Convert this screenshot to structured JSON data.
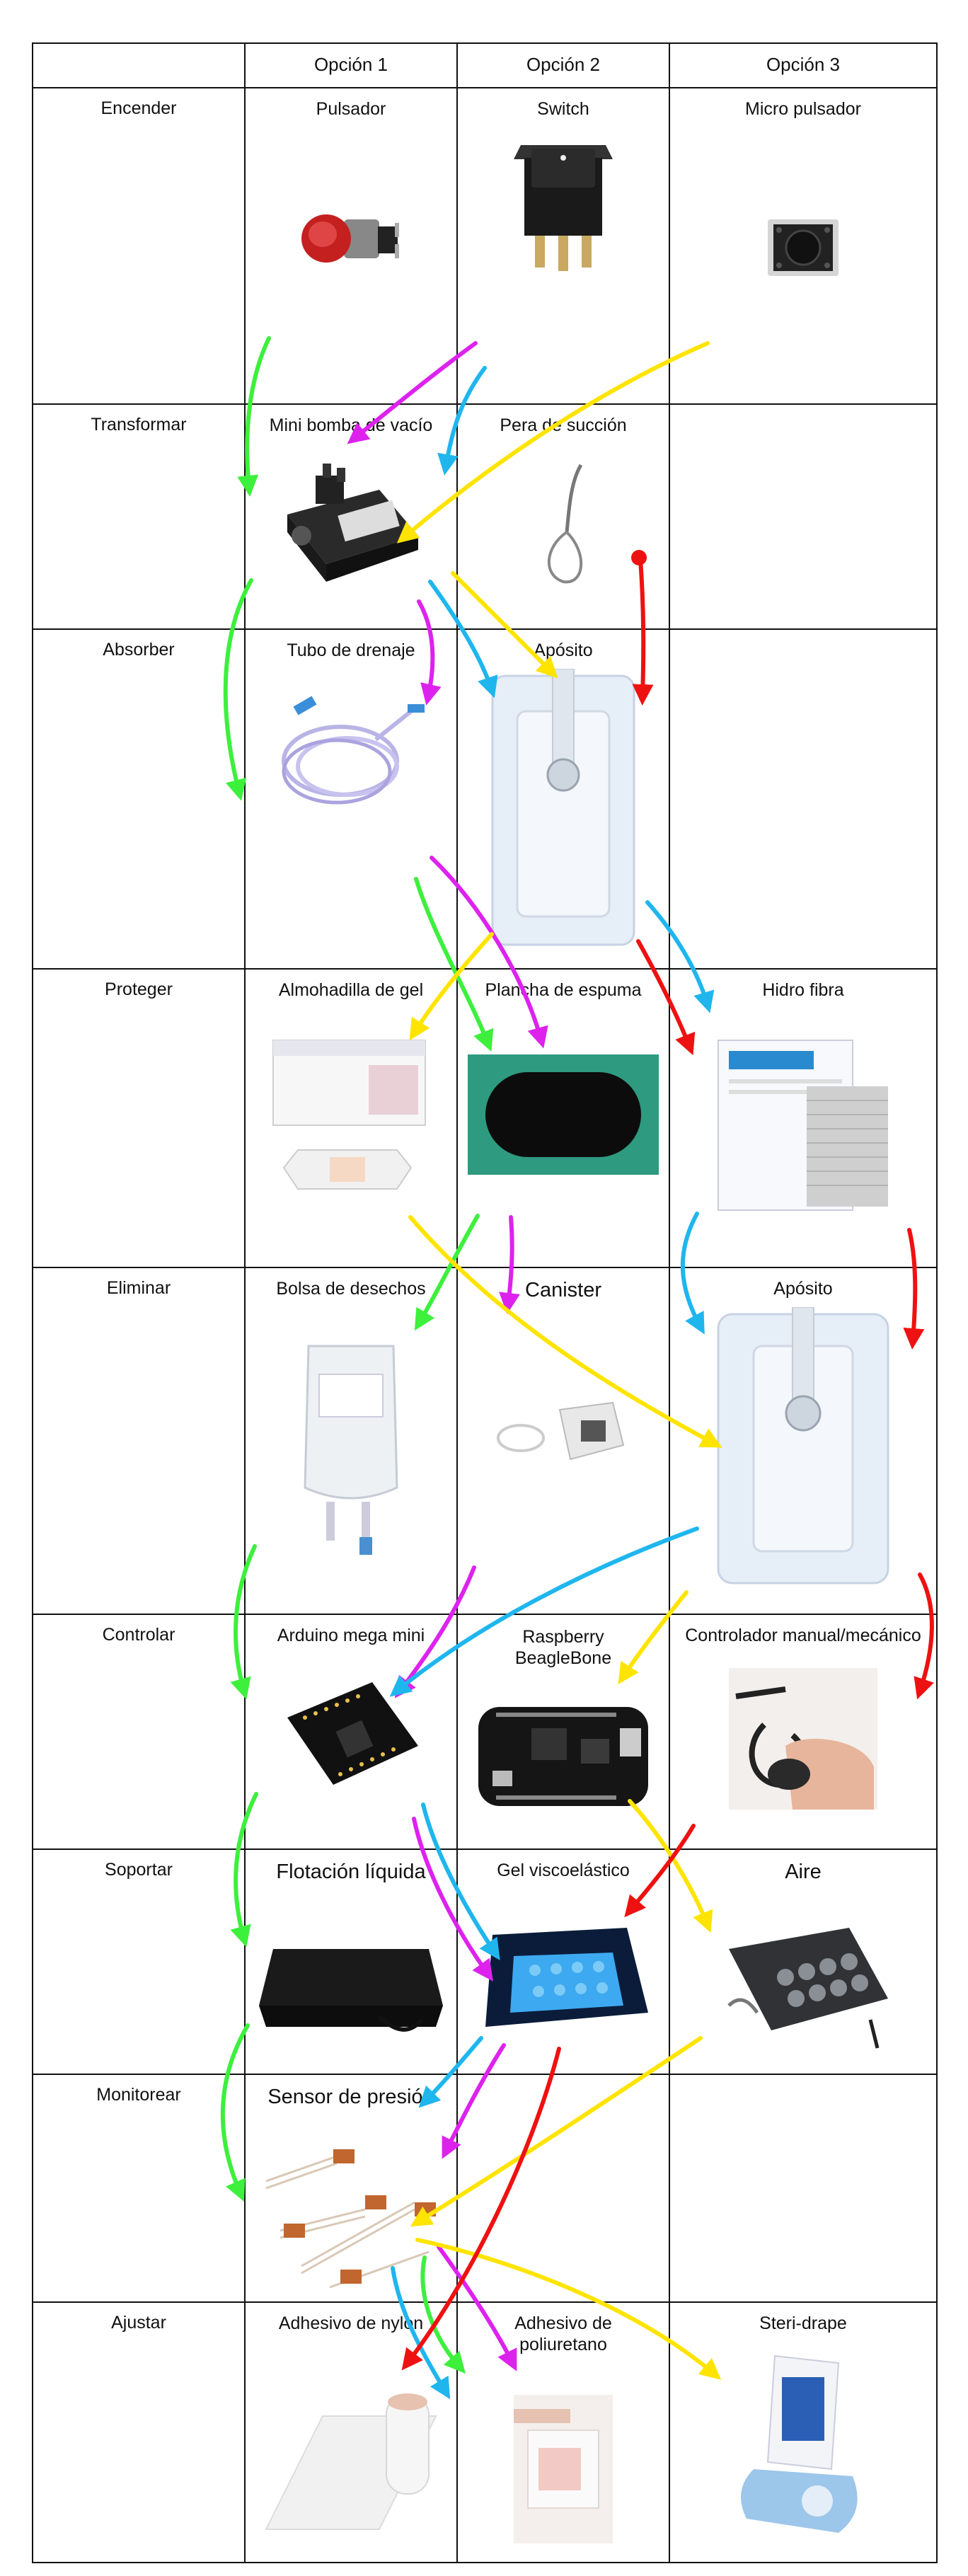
{
  "header": {
    "corner": "",
    "opt1": "Opción 1",
    "opt2": "Opción 2",
    "opt3": "Opción 3"
  },
  "rows": [
    {
      "name": "Encender",
      "opt1": "Pulsador",
      "opt2": "Switch",
      "opt3": "Micro pulsador"
    },
    {
      "name": "Transformar",
      "opt1": "Mini bomba de vacío",
      "opt2": "Pera de succión",
      "opt3": ""
    },
    {
      "name": "Absorber",
      "opt1": "Tubo de drenaje",
      "opt2": "Apósito",
      "opt3": ""
    },
    {
      "name": "Proteger",
      "opt1": "Almohadilla de gel",
      "opt2": "Plancha de espuma",
      "opt3": "Hidro fibra"
    },
    {
      "name": "Eliminar",
      "opt1": "Bolsa de desechos",
      "opt2": "Canister",
      "opt3": "Apósito"
    },
    {
      "name": "Controlar",
      "opt1": "Arduino mega mini",
      "opt2": "Raspberry\nBeagleBone",
      "opt3": "Controlador manual/mecánico"
    },
    {
      "name": "Soportar",
      "opt1": "Flotación líquida",
      "opt2": "Gel viscoelástico",
      "opt3": "Aire"
    },
    {
      "name": "Monitorear",
      "opt1": "Sensor de presión",
      "opt2": "",
      "opt3": ""
    },
    {
      "name": "Ajustar",
      "opt1": "Adhesivo de nylon",
      "opt2": "Adhesivo de poliuretano",
      "opt3": "Steri-drape"
    }
  ],
  "arrow_colors": {
    "green": "#3cf03c",
    "magenta": "#dd22ee",
    "blue": "#1fb6ee",
    "yellow": "#ffe400",
    "red": "#ee1111"
  }
}
